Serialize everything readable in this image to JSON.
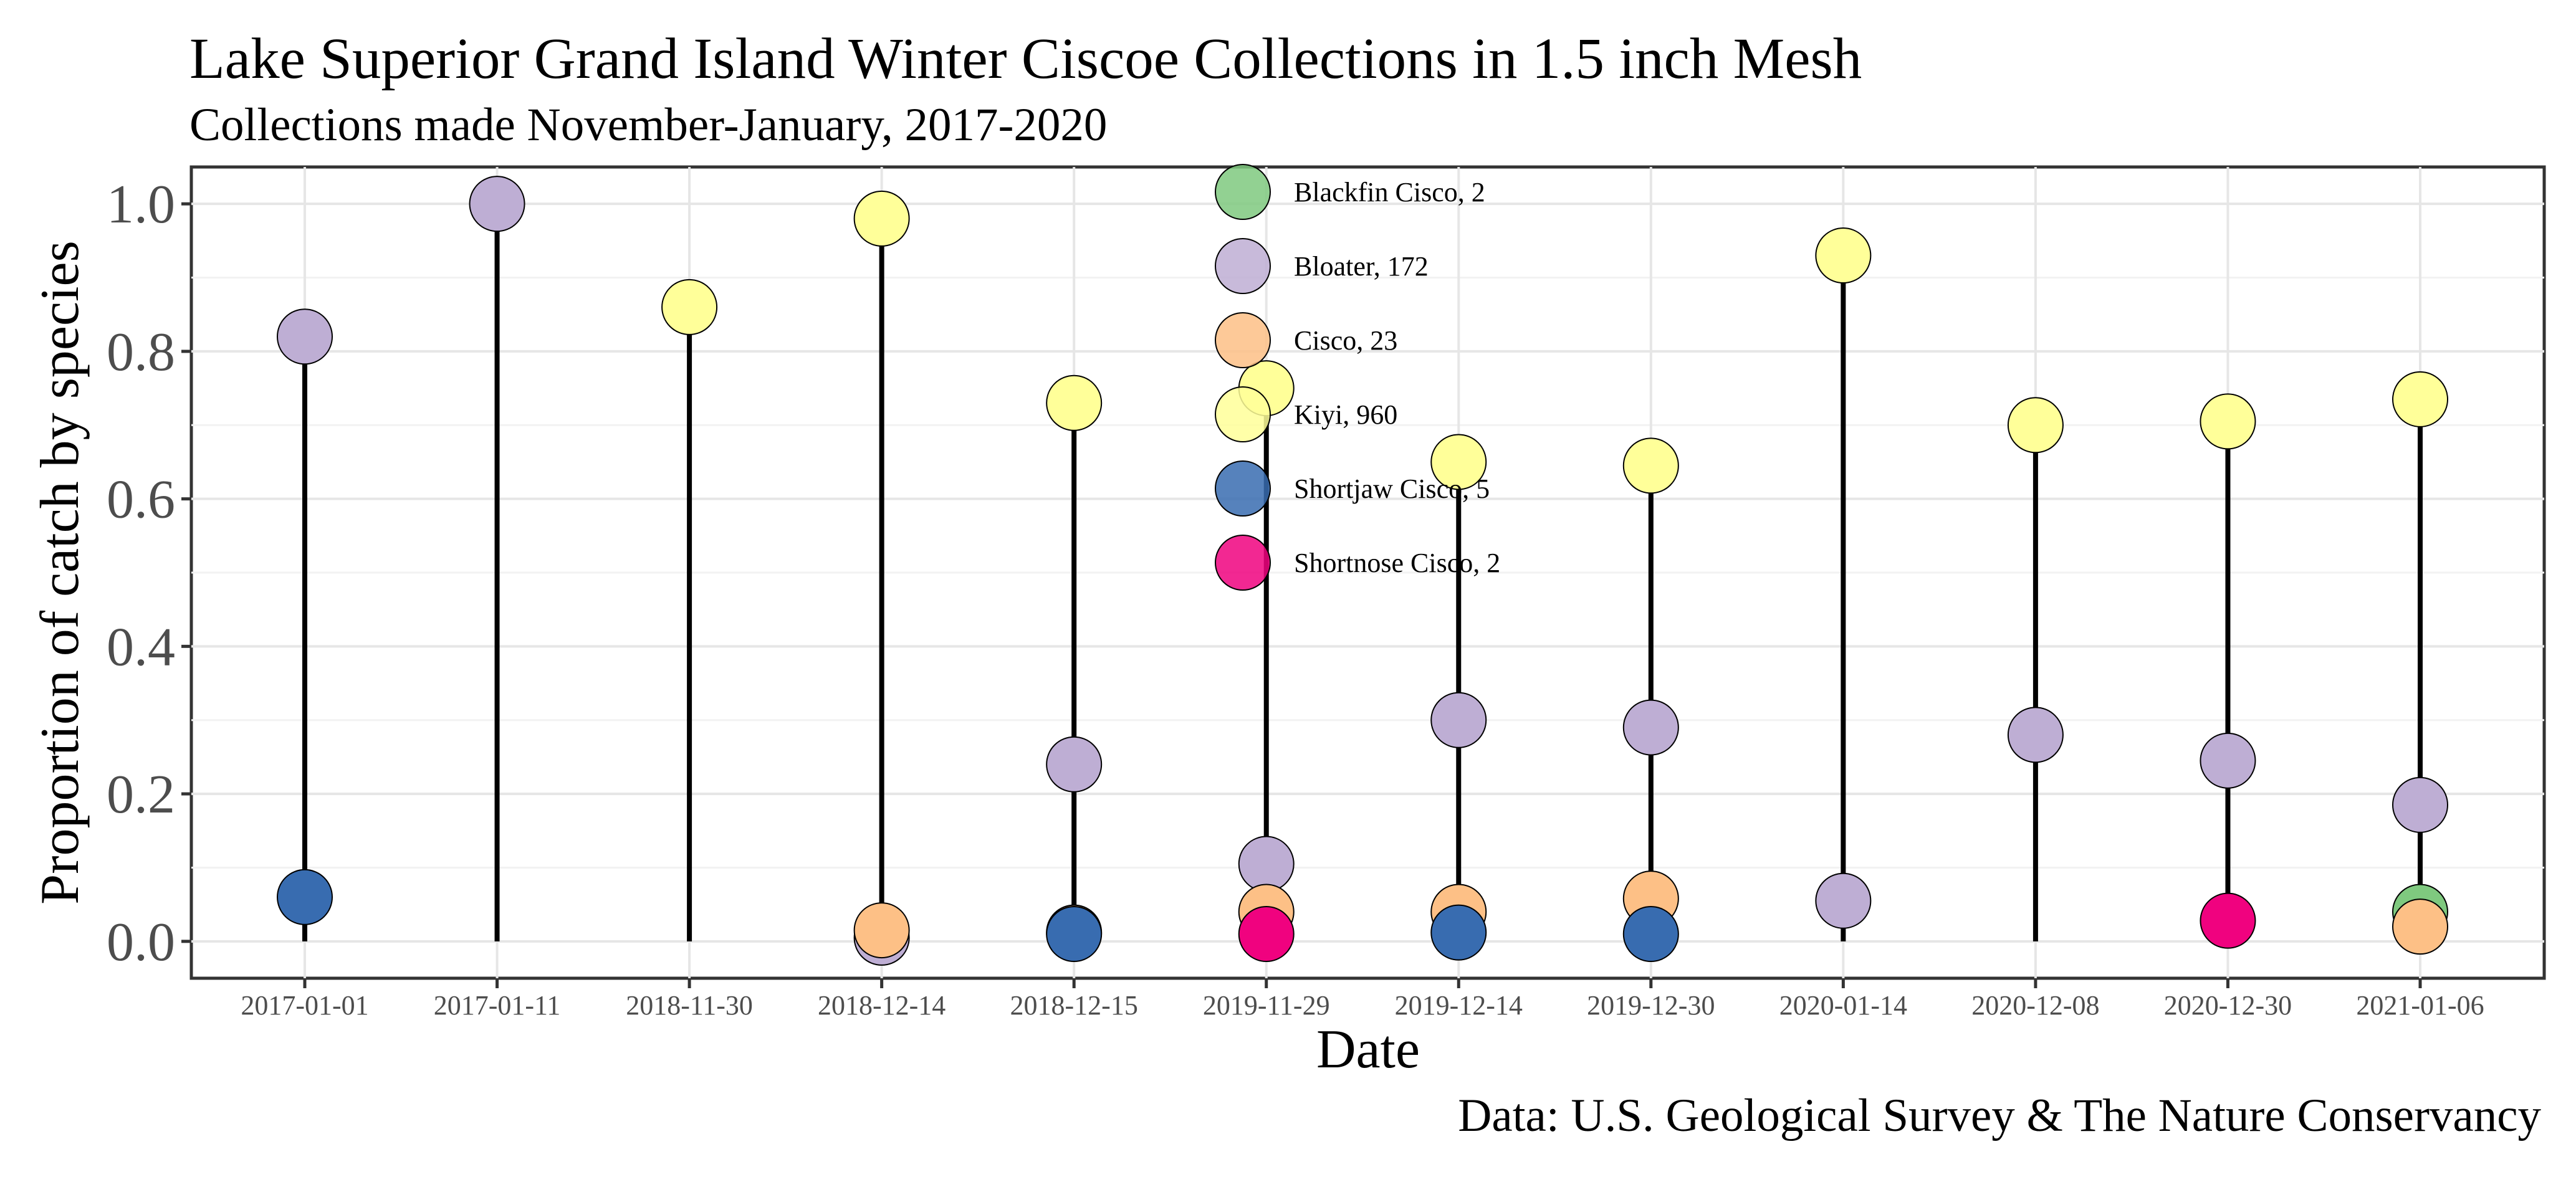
{
  "chart_data": {
    "type": "scatter",
    "title": "Lake Superior Grand Island Winter Ciscoe Collections in 1.5 inch Mesh",
    "subtitle": "Collections made November-January, 2017-2020",
    "xlabel": "Date",
    "ylabel": "Proportion of catch by species",
    "caption": "Data: U.S. Geological Survey & The Nature Conservancy",
    "ylim": [
      -0.05,
      1.05
    ],
    "yticks": [
      "0.0",
      "0.2",
      "0.4",
      "0.6",
      "0.8",
      "1.0"
    ],
    "grid": true,
    "legend_position": "inside-top-center",
    "categories": [
      "2017-01-01",
      "2017-01-11",
      "2018-11-30",
      "2018-12-14",
      "2018-12-15",
      "2019-11-29",
      "2019-12-14",
      "2019-12-30",
      "2020-01-14",
      "2020-12-08",
      "2020-12-30",
      "2021-01-06"
    ],
    "segments": [
      0.82,
      1.0,
      0.86,
      0.98,
      0.73,
      0.75,
      0.65,
      0.64,
      0.93,
      0.7,
      0.7,
      0.73
    ],
    "series": [
      {
        "name": "Blackfin Cisco, 2",
        "color": "#7fc97f",
        "points": [
          [
            11,
            0.04
          ]
        ]
      },
      {
        "name": "Bloater, 172",
        "color": "#beaed4",
        "points": [
          [
            0,
            0.82
          ],
          [
            1,
            1.0
          ],
          [
            3,
            0.005
          ],
          [
            4,
            0.24
          ],
          [
            5,
            0.105
          ],
          [
            6,
            0.3
          ],
          [
            7,
            0.29
          ],
          [
            8,
            0.055
          ],
          [
            9,
            0.28
          ],
          [
            10,
            0.245
          ],
          [
            11,
            0.185
          ]
        ]
      },
      {
        "name": "Cisco, 23",
        "color": "#fdc086",
        "points": [
          [
            3,
            0.015
          ],
          [
            4,
            0.012
          ],
          [
            5,
            0.04
          ],
          [
            6,
            0.04
          ],
          [
            7,
            0.058
          ],
          [
            11,
            0.02
          ]
        ]
      },
      {
        "name": "Kiyi, 960",
        "color": "#ffff99",
        "points": [
          [
            2,
            0.86
          ],
          [
            3,
            0.98
          ],
          [
            4,
            0.73
          ],
          [
            5,
            0.75
          ],
          [
            6,
            0.65
          ],
          [
            7,
            0.645
          ],
          [
            8,
            0.93
          ],
          [
            9,
            0.7
          ],
          [
            10,
            0.705
          ],
          [
            11,
            0.735
          ]
        ]
      },
      {
        "name": "Shortjaw Cisco, 5",
        "color": "#386cb0",
        "points": [
          [
            0,
            0.06
          ],
          [
            4,
            0.01
          ],
          [
            6,
            0.012
          ],
          [
            7,
            0.01
          ]
        ]
      },
      {
        "name": "Shortnose Cisco, 2",
        "color": "#f0027f",
        "points": [
          [
            5,
            0.01
          ],
          [
            10,
            0.028
          ]
        ]
      }
    ]
  }
}
